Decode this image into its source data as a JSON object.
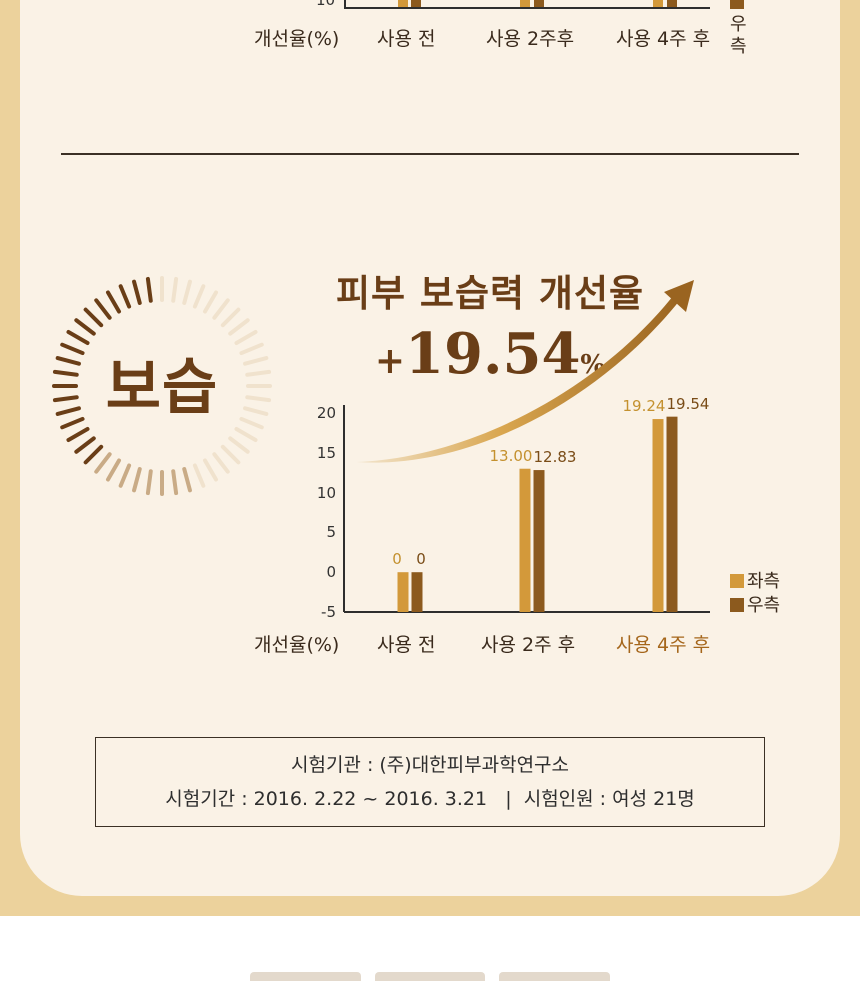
{
  "top_chart": {
    "y_partial_tick": "10",
    "xaxis_title": "개선율(%)",
    "categories": [
      "사용 전",
      "사용 2주후",
      "사용 4주 후"
    ],
    "legend_partial": "우측"
  },
  "badge": {
    "label": "보습"
  },
  "headline": {
    "title": "피부 보습력 개선율",
    "plus": "+",
    "number": "19.54",
    "percent": "%"
  },
  "chart_data": {
    "type": "bar",
    "xlabel": "개선율(%)",
    "categories": [
      "사용 전",
      "사용 2주 후",
      "사용 4주 후"
    ],
    "series": [
      {
        "name": "좌측",
        "values": [
          0,
          13.0,
          19.24
        ],
        "labels": [
          "0",
          "13.00",
          "19.24"
        ],
        "color": "#d3993a"
      },
      {
        "name": "우측",
        "values": [
          0,
          12.83,
          19.54
        ],
        "labels": [
          "0",
          "12.83",
          "19.54"
        ],
        "color": "#8c5a1e"
      }
    ],
    "yticks": [
      "20",
      "15",
      "10",
      "5",
      "0",
      "-5"
    ],
    "ylim": [
      -5,
      20
    ],
    "legend_position": "bottom-right",
    "highlight_category": "사용 4주 후"
  },
  "info": {
    "line1": "시험기관 : (주)대한피부과학연구소",
    "line2": "시험기간 : 2016. 2.22 ~ 2016. 3.21   |  시험인원 : 여성 21명"
  },
  "colors": {
    "outer_band": "#ecd29c",
    "panel": "#faf2e6",
    "brand_brown": "#6a3e17",
    "left_bar": "#d3993a",
    "right_bar": "#8c5a1e"
  }
}
